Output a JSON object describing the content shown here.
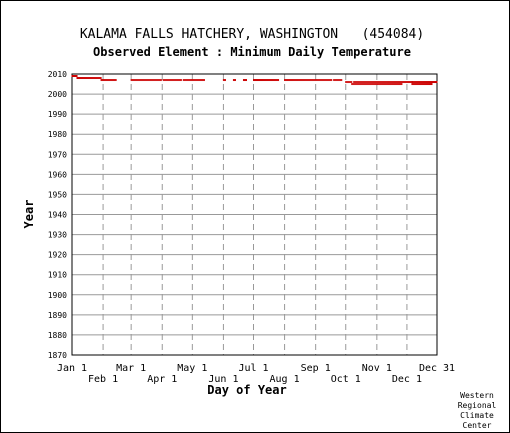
{
  "chart_data": {
    "type": "scatter",
    "title": "KALAMA FALLS HATCHERY, WASHINGTON   (454084)",
    "subtitle": "Observed Element : Minimum Daily Temperature",
    "xlabel": "Day of Year",
    "ylabel": "Year",
    "xlim": [
      1,
      365
    ],
    "ylim": [
      1870,
      2010
    ],
    "grid": true,
    "x_ticks_upper": [
      {
        "label": "Jan 1",
        "day": 1
      },
      {
        "label": "Mar 1",
        "day": 60
      },
      {
        "label": "May 1",
        "day": 121
      },
      {
        "label": "Jul 1",
        "day": 182
      },
      {
        "label": "Sep 1",
        "day": 244
      },
      {
        "label": "Nov 1",
        "day": 305
      },
      {
        "label": "Dec 31",
        "day": 365
      }
    ],
    "x_ticks_lower": [
      {
        "label": "Feb 1",
        "day": 32
      },
      {
        "label": "Apr 1",
        "day": 91
      },
      {
        "label": "Jun 1",
        "day": 152
      },
      {
        "label": "Aug 1",
        "day": 213
      },
      {
        "label": "Oct 1",
        "day": 274
      },
      {
        "label": "Dec 1",
        "day": 335
      }
    ],
    "y_ticks": [
      1870,
      1880,
      1890,
      1900,
      1910,
      1920,
      1930,
      1940,
      1950,
      1960,
      1970,
      1980,
      1990,
      2000,
      2010
    ],
    "point_color": "#cc0000",
    "observed_segments": [
      {
        "year": 2009,
        "start": 1,
        "end": 6
      },
      {
        "year": 2008,
        "start": 6,
        "end": 30
      },
      {
        "year": 2007,
        "start": 30,
        "end": 45
      },
      {
        "year": 2007,
        "start": 60,
        "end": 90
      },
      {
        "year": 2007,
        "start": 92,
        "end": 110
      },
      {
        "year": 2007,
        "start": 112,
        "end": 133
      },
      {
        "year": 2007,
        "start": 152,
        "end": 154
      },
      {
        "year": 2007,
        "start": 162,
        "end": 164
      },
      {
        "year": 2007,
        "start": 172,
        "end": 175
      },
      {
        "year": 2007,
        "start": 182,
        "end": 207
      },
      {
        "year": 2007,
        "start": 213,
        "end": 260
      },
      {
        "year": 2007,
        "start": 262,
        "end": 270
      },
      {
        "year": 2006,
        "start": 274,
        "end": 280
      },
      {
        "year": 2006,
        "start": 282,
        "end": 340
      },
      {
        "year": 2005,
        "start": 280,
        "end": 330
      },
      {
        "year": 2006,
        "start": 340,
        "end": 365
      },
      {
        "year": 2005,
        "start": 340,
        "end": 360
      }
    ]
  },
  "credit": [
    "Western",
    "Regional",
    "Climate",
    "Center"
  ]
}
